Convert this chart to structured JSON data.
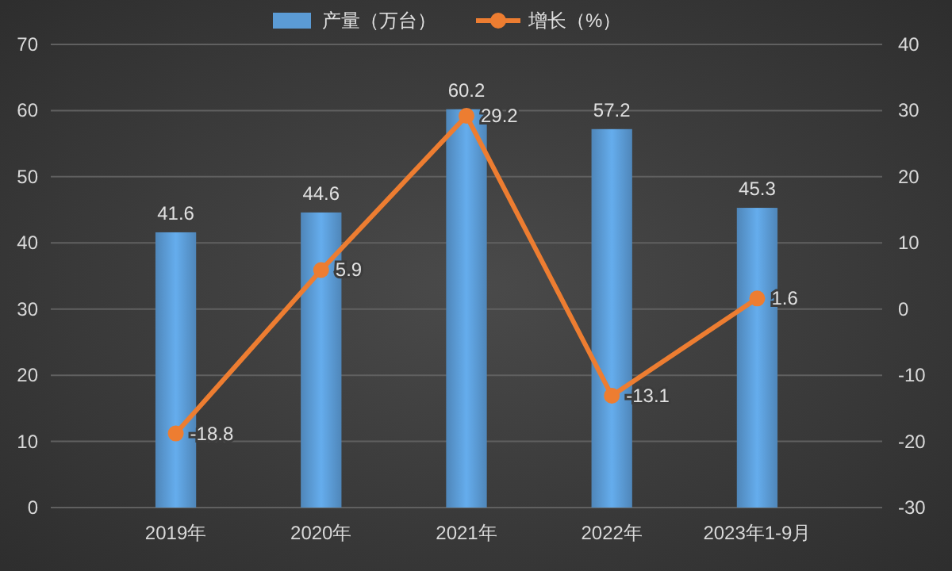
{
  "chart_data": {
    "type": "bar",
    "categories": [
      "2019年",
      "2020年",
      "2021年",
      "2022年",
      "2023年1-9月"
    ],
    "series": [
      {
        "name": "产量（万台）",
        "color": "#5b9bd5",
        "values": [
          41.6,
          44.6,
          60.2,
          57.2,
          45.3
        ]
      },
      {
        "name": "增长（%）",
        "type": "line",
        "axis": "y2",
        "color": "#ed7d31",
        "values": [
          -18.8,
          5.9,
          29.2,
          -13.1,
          1.6
        ]
      }
    ],
    "ylim": [
      0,
      70
    ],
    "yticks": [
      0,
      10,
      20,
      30,
      40,
      50,
      60,
      70
    ],
    "y2lim": [
      -30,
      40
    ],
    "y2ticks": [
      -30,
      -20,
      -10,
      0,
      10,
      20,
      30,
      40
    ],
    "grid": "y",
    "legend": "top",
    "marker": "circle",
    "line_style": "solid",
    "data_labels": true
  }
}
